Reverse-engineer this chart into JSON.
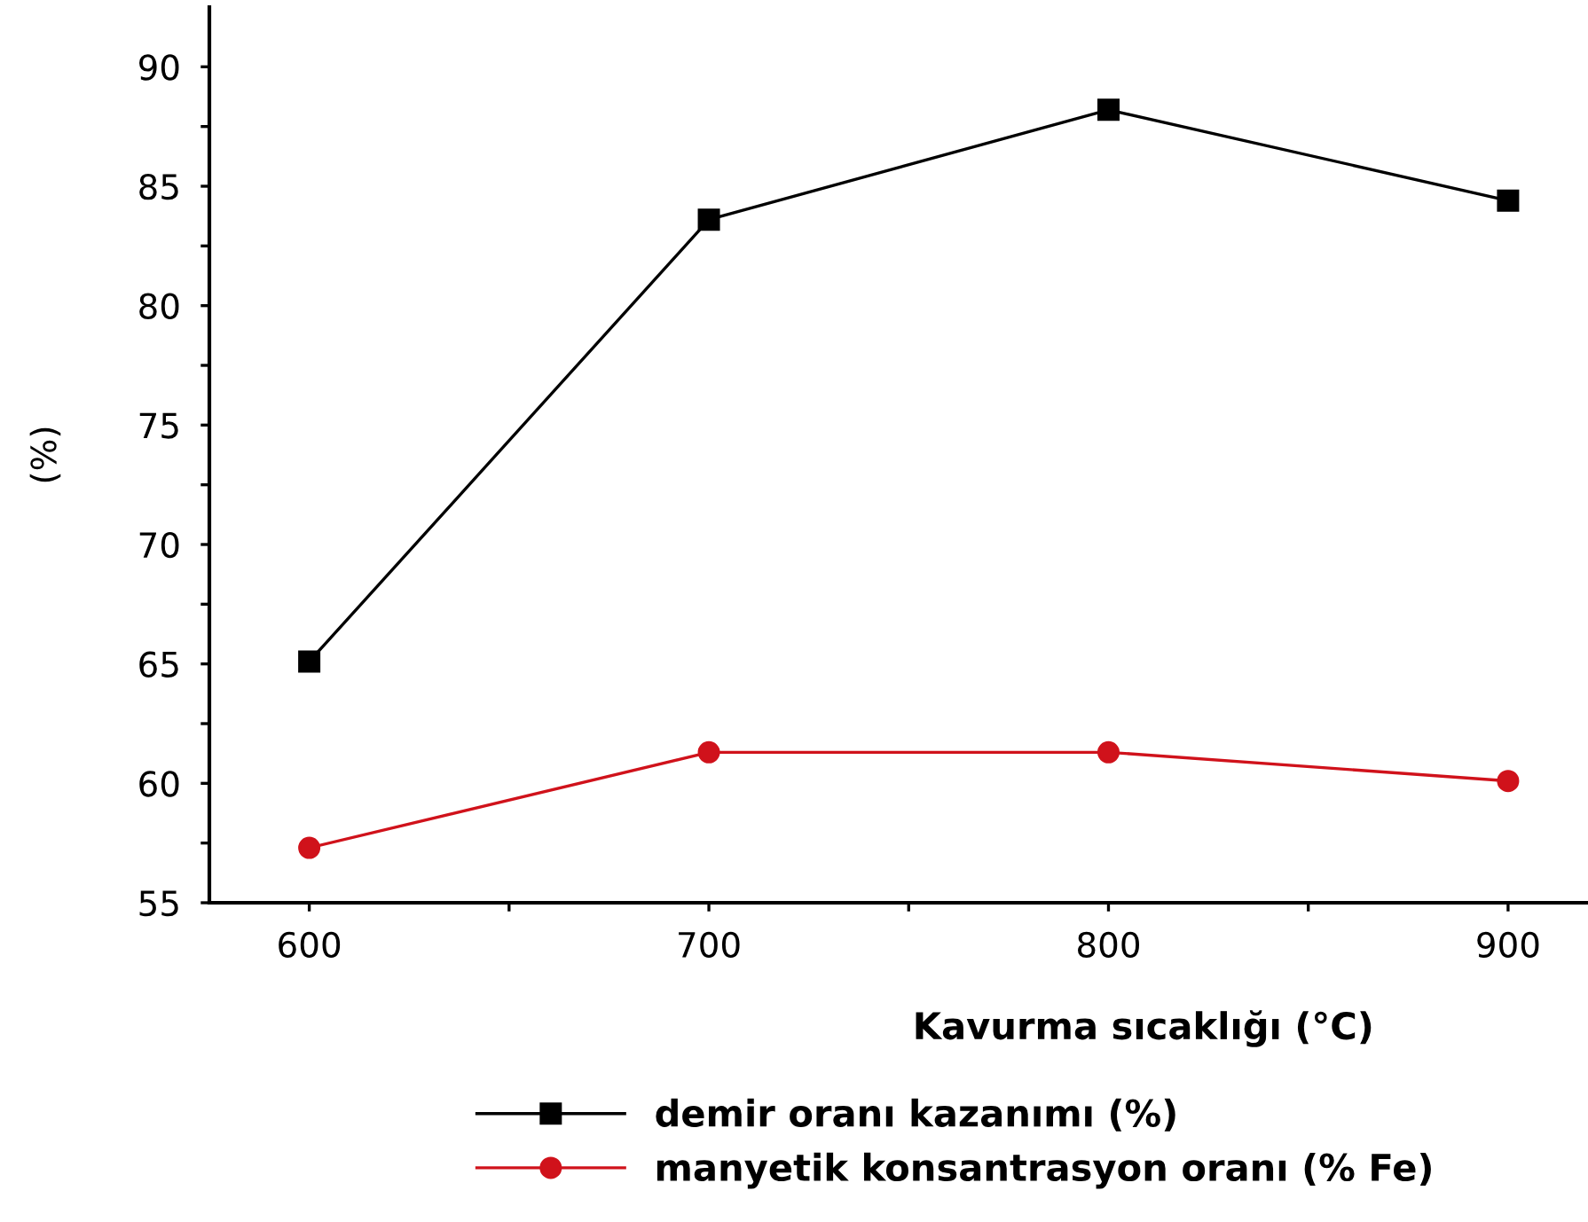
{
  "chart_data": {
    "type": "line",
    "xlabel": "Kavurma sıcaklığı (°C)",
    "ylabel": "(%)",
    "x": [
      600,
      700,
      800,
      900
    ],
    "series": [
      {
        "name": "demir oranı kazanımı (%)",
        "color": "#000000",
        "marker": "square",
        "values": [
          65.1,
          83.6,
          88.2,
          84.4
        ]
      },
      {
        "name": "manyetik konsantrasyon oranı (% Fe)",
        "color": "#d0121b",
        "marker": "circle",
        "values": [
          57.3,
          61.3,
          61.3,
          60.1
        ]
      }
    ],
    "xlim": [
      575,
      920
    ],
    "xticks": [
      600,
      {
        "value": 650,
        "label": null
      },
      700,
      {
        "value": 750,
        "label": null
      },
      800,
      {
        "value": 850,
        "label": null
      },
      900
    ],
    "ylim": [
      55,
      92.5
    ],
    "yticks": [
      55,
      {
        "value": 57.5,
        "label": null
      },
      60,
      {
        "value": 62.5,
        "label": null
      },
      65,
      {
        "value": 67.5,
        "label": null
      },
      70,
      {
        "value": 72.5,
        "label": null
      },
      75,
      {
        "value": 77.5,
        "label": null
      },
      80,
      {
        "value": 82.5,
        "label": null
      },
      85,
      {
        "value": 87.5,
        "label": null
      },
      90
    ],
    "grid": false,
    "legend": "bottom",
    "line_style": "solid"
  }
}
